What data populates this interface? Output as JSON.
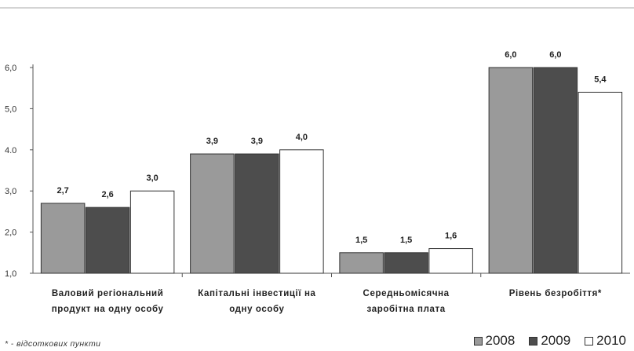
{
  "chart_data": {
    "type": "bar",
    "categories": [
      [
        "Валовий регіональний",
        "продукт на одну особу"
      ],
      [
        "Капітальні інвестиції на",
        "одну особу"
      ],
      [
        "Середньомісячна",
        "заробітна плата"
      ],
      [
        "Рівень безробіття*"
      ]
    ],
    "series": [
      {
        "name": "2008",
        "values": [
          2.7,
          3.9,
          1.5,
          6.0
        ],
        "labels": [
          "2,7",
          "3,9",
          "1,5",
          "6,0"
        ],
        "color": "#9a9a9a"
      },
      {
        "name": "2009",
        "values": [
          2.6,
          3.9,
          1.5,
          6.0
        ],
        "labels": [
          "2,6",
          "3,9",
          "1,5",
          "6,0"
        ],
        "color": "#4d4d4d"
      },
      {
        "name": "2010",
        "values": [
          3.0,
          4.0,
          1.6,
          5.4
        ],
        "labels": [
          "3,0",
          "4,0",
          "1,6",
          "5,4"
        ],
        "color": "#ffffff"
      }
    ],
    "yticks": [
      1.0,
      2.0,
      3.0,
      4.0,
      5.0,
      6.0
    ],
    "ytick_labels": [
      "1,0",
      "2,0",
      "3,0",
      "4.0",
      "5,0",
      "6,0"
    ],
    "ylim": [
      1.0,
      6.0
    ],
    "grid": false,
    "legend_position": "bottom-right"
  },
  "footnote": "* - відсоткових пункти"
}
